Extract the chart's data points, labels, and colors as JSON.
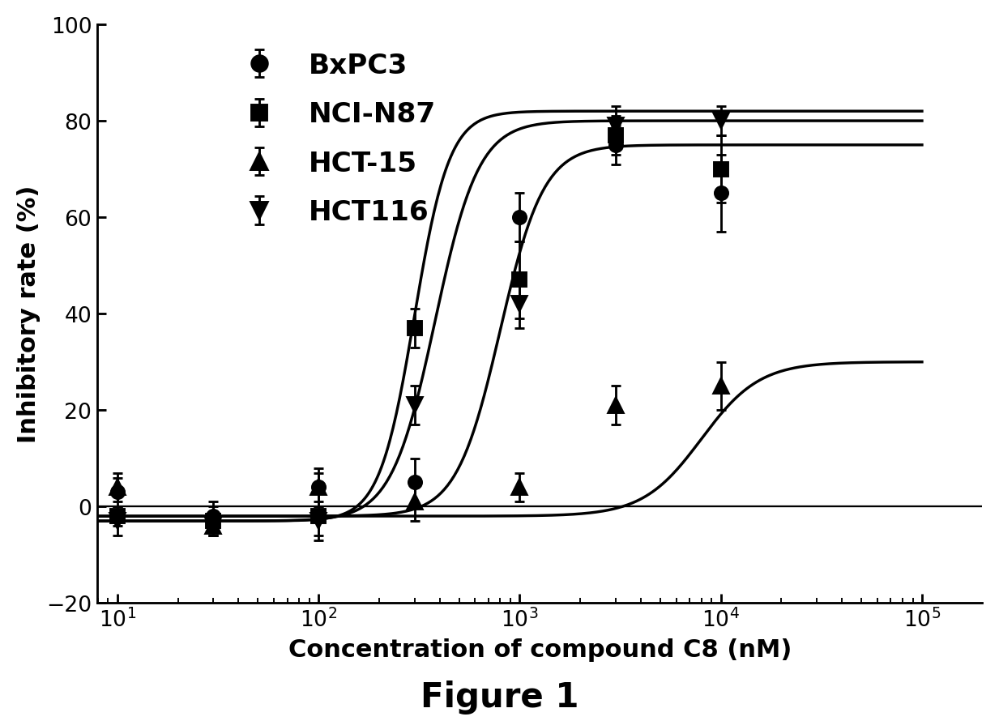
{
  "title": "Figure 1",
  "xlabel": "Concentration of compound C8 (nM)",
  "ylabel": "Inhibitory rate (%)",
  "ylim": [
    -20,
    100
  ],
  "yticks": [
    -20,
    0,
    20,
    40,
    60,
    80,
    100
  ],
  "xlim_log": [
    0.9,
    5.5
  ],
  "series": [
    {
      "label": "BxPC3",
      "marker": "o",
      "x": [
        10,
        30,
        100,
        300,
        1000,
        3000,
        10000
      ],
      "y": [
        3,
        -2,
        4,
        5,
        60,
        75,
        65
      ],
      "yerr": [
        3,
        3,
        4,
        5,
        5,
        4,
        8
      ],
      "ec50": 800,
      "hill": 4,
      "bottom": -2,
      "top": 75
    },
    {
      "label": "NCI-N87",
      "marker": "s",
      "x": [
        10,
        30,
        100,
        300,
        1000,
        3000,
        10000
      ],
      "y": [
        -2,
        -3,
        -2,
        37,
        47,
        77,
        70
      ],
      "yerr": [
        2,
        3,
        5,
        4,
        8,
        4,
        7
      ],
      "ec50": 380,
      "hill": 4,
      "bottom": -3,
      "top": 80
    },
    {
      "label": "HCT-15",
      "marker": "^",
      "x": [
        10,
        30,
        100,
        300,
        1000,
        3000,
        10000
      ],
      "y": [
        4,
        -4,
        4,
        1,
        4,
        21,
        25
      ],
      "yerr": [
        3,
        2,
        3,
        4,
        3,
        4,
        5
      ],
      "ec50": 8000,
      "hill": 3,
      "bottom": -2,
      "top": 30
    },
    {
      "label": "HCT116",
      "marker": "v",
      "x": [
        10,
        30,
        100,
        300,
        1000,
        3000,
        10000
      ],
      "y": [
        -3,
        -4,
        -3,
        21,
        42,
        79,
        80
      ],
      "yerr": [
        3,
        2,
        3,
        4,
        5,
        4,
        3
      ],
      "ec50": 300,
      "hill": 5,
      "bottom": -3,
      "top": 82
    }
  ],
  "figure_label": "Figure 1",
  "line_color": "black",
  "marker_color": "black",
  "background_color": "white",
  "legend_fontsize": 18,
  "axis_fontsize": 16,
  "tick_fontsize": 14,
  "title_fontsize": 22
}
